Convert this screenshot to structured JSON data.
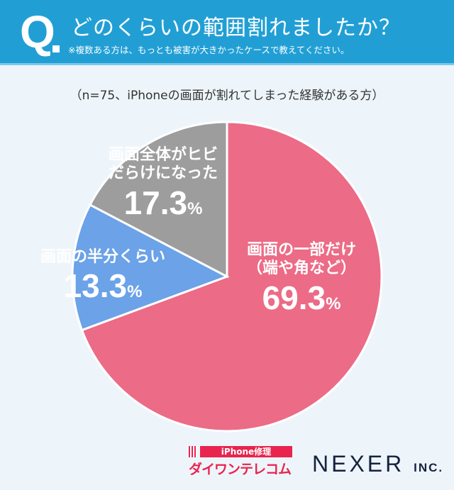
{
  "header": {
    "q": "Q",
    "title": "どのくらいの範囲割れましたか？",
    "note": "※複数ある方は、もっとも被害が大きかったケースで教えてください。"
  },
  "subtitle": "（n=75、iPhoneの画面が割れてしまった経験がある方）",
  "chart_data": {
    "type": "pie",
    "start": "top, clockwise",
    "slices": [
      {
        "label": "画面の一部だけ（端や角など）",
        "label_lines": [
          "画面の一部だけ",
          "（端や角など）"
        ],
        "value": 69.3,
        "pct_text": "69.3",
        "color": "#ec6b86"
      },
      {
        "label": "画面の半分くらい",
        "label_lines": [
          "画面の半分くらい"
        ],
        "value": 13.3,
        "pct_text": "13.3",
        "color": "#6ba2e8"
      },
      {
        "label": "画面全体がヒビだらけになった",
        "label_lines": [
          "画面全体がヒビ",
          "だらけになった"
        ],
        "value": 17.3,
        "pct_text": "17.3",
        "color": "#9d9d9d"
      }
    ],
    "unit": "%"
  },
  "logos": {
    "daiwan_top": "iPhone修理",
    "daiwan_bottom": "ダイワンテレコム",
    "nexer": "NEXER",
    "nexer_suffix": "INC."
  }
}
